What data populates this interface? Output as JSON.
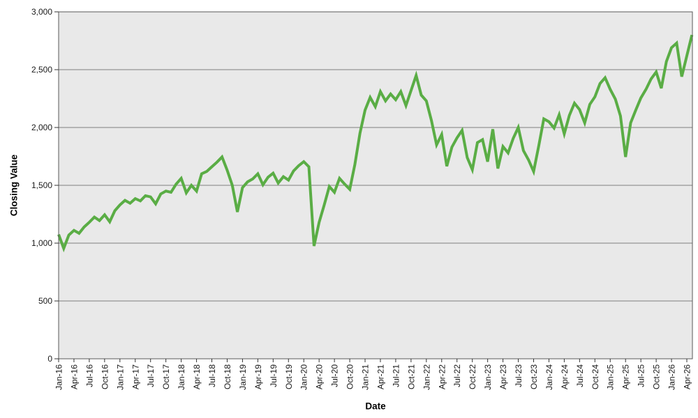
{
  "chart_data": {
    "type": "line",
    "title": "",
    "xlabel": "Date",
    "ylabel": "Closing Value",
    "legend": "none",
    "grid": "horizontal-only",
    "ylim": [
      0,
      3000
    ],
    "ytick_values": [
      0,
      500,
      1000,
      1500,
      2000,
      2500,
      3000
    ],
    "ytick_labels": [
      "0",
      "500",
      "1,000",
      "1,500",
      "2,000",
      "2,500",
      "3,000"
    ],
    "x_unit": "month",
    "x_start": "Jan-16",
    "x_end": "May-26",
    "xtick_month_step": 3,
    "xtick_labels": [
      "Jan-16",
      "Apr-16",
      "Jul-16",
      "Oct-16",
      "Jan-17",
      "Apr-17",
      "Jul-17",
      "Oct-17",
      "Jan-18",
      "Apr-18",
      "Jul-18",
      "Oct-18",
      "Jan-19",
      "Apr-19",
      "Jul-19",
      "Oct-19",
      "Jan-20",
      "Apr-20",
      "Jul-20",
      "Oct-20",
      "Jan-21",
      "Apr-21",
      "Jul-21",
      "Oct-21",
      "Jan-22",
      "Apr-22",
      "Jul-22",
      "Oct-22",
      "Jan-23",
      "Apr-23",
      "Jul-23",
      "Oct-23",
      "Jan-24",
      "Apr-24",
      "Jul-24",
      "Oct-24",
      "Jan-25",
      "Apr-25",
      "Jul-25",
      "Oct-25",
      "Jan-26",
      "Apr-26"
    ],
    "series": [
      {
        "name": "Closing Value",
        "color": "#5aad45",
        "values": [
          1075,
          955,
          1070,
          1110,
          1085,
          1140,
          1180,
          1225,
          1195,
          1245,
          1185,
          1280,
          1330,
          1370,
          1345,
          1385,
          1365,
          1410,
          1400,
          1340,
          1425,
          1450,
          1440,
          1510,
          1560,
          1435,
          1500,
          1450,
          1600,
          1620,
          1660,
          1700,
          1745,
          1630,
          1500,
          1270,
          1480,
          1530,
          1555,
          1600,
          1505,
          1570,
          1605,
          1520,
          1575,
          1545,
          1625,
          1670,
          1705,
          1660,
          975,
          1180,
          1330,
          1490,
          1440,
          1560,
          1510,
          1465,
          1680,
          1950,
          2150,
          2260,
          2180,
          2310,
          2230,
          2290,
          2240,
          2310,
          2190,
          2320,
          2450,
          2280,
          2230,
          2060,
          1850,
          1940,
          1665,
          1830,
          1910,
          1975,
          1740,
          1635,
          1870,
          1895,
          1705,
          1985,
          1645,
          1835,
          1780,
          1905,
          2000,
          1800,
          1720,
          1620,
          1840,
          2075,
          2050,
          1995,
          2110,
          1945,
          2105,
          2210,
          2155,
          2040,
          2200,
          2265,
          2380,
          2430,
          2330,
          2245,
          2100,
          1745,
          2040,
          2150,
          2255,
          2330,
          2420,
          2480,
          2340,
          2570,
          2690,
          2730,
          2440,
          2620,
          2800
        ]
      }
    ],
    "colors": {
      "plot_background": "#e9e9e9",
      "gridline": "#808080",
      "plot_border": "#595959",
      "tick": "#333333",
      "tick_label": "#1a1a1a",
      "axis_title": "#000000",
      "page_background": "#ffffff"
    }
  }
}
